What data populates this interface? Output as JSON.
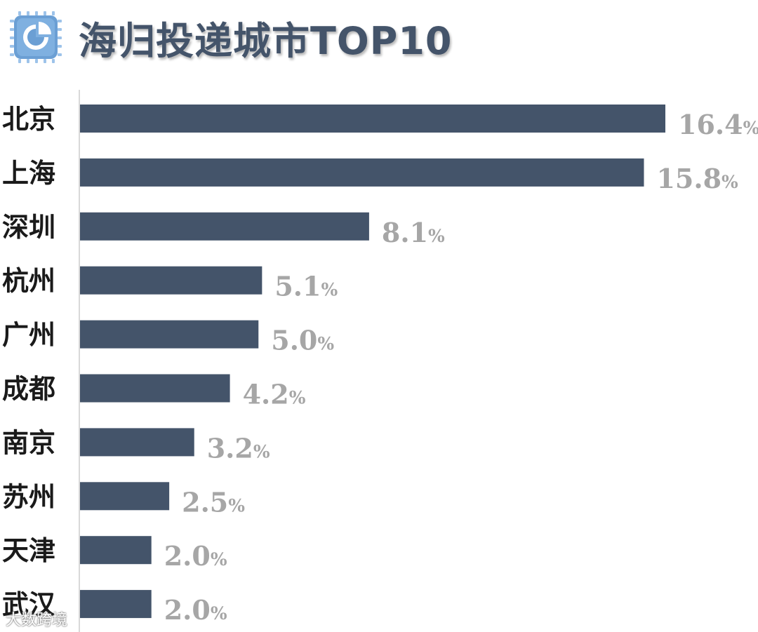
{
  "header": {
    "title": "海归投递城市TOP10",
    "logo_icon": "chart-chip-icon"
  },
  "watermark": "大数跨境",
  "colors": {
    "bar": "#44546a",
    "value_label": "#a6a6a6",
    "title": "#44546a",
    "logo_bg": "#6b9fd4",
    "axis": "#d9d9d9"
  },
  "chart_data": {
    "type": "bar",
    "orientation": "horizontal",
    "title": "海归投递城市TOP10",
    "xlabel": "",
    "ylabel": "",
    "unit": "%",
    "categories": [
      "北京",
      "上海",
      "深圳",
      "杭州",
      "广州",
      "成都",
      "南京",
      "苏州",
      "天津",
      "武汉"
    ],
    "values": [
      16.4,
      15.8,
      8.1,
      5.1,
      5.0,
      4.2,
      3.2,
      2.5,
      2.0,
      2.0
    ],
    "value_labels": [
      "16.4",
      "15.8",
      "8.1",
      "5.1",
      "5.0",
      "4.2",
      "3.2",
      "2.5",
      "2.0",
      "2.0"
    ],
    "grid": false,
    "legend": "none"
  }
}
